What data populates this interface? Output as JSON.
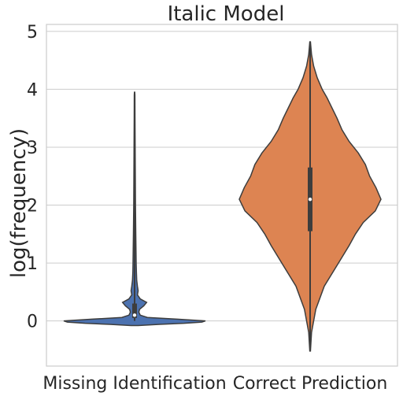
{
  "chart_data": {
    "type": "violin",
    "title": "Italic Model",
    "xlabel": "",
    "ylabel": "log(frequency)",
    "ylim": [
      -0.78,
      5.12
    ],
    "yticks": [
      "0",
      "1",
      "2",
      "3",
      "4",
      "5"
    ],
    "grid": "horizontal",
    "categories": [
      "Missing Identification",
      "Correct Prediction"
    ],
    "series": [
      {
        "color": "#4c72b0",
        "min": 0.0,
        "max": 3.95,
        "q1": 0.05,
        "median": 0.1,
        "q3": 0.3,
        "density": [
          [
            -0.08,
            0.05
          ],
          [
            -0.06,
            0.35
          ],
          [
            -0.04,
            0.7
          ],
          [
            -0.02,
            0.95
          ],
          [
            0.0,
            1.0
          ],
          [
            0.03,
            0.6
          ],
          [
            0.06,
            0.18
          ],
          [
            0.1,
            0.08
          ],
          [
            0.15,
            0.06
          ],
          [
            0.2,
            0.07
          ],
          [
            0.26,
            0.13
          ],
          [
            0.32,
            0.17
          ],
          [
            0.38,
            0.08
          ],
          [
            0.45,
            0.04
          ],
          [
            0.52,
            0.05
          ],
          [
            0.6,
            0.04
          ],
          [
            0.7,
            0.03
          ],
          [
            0.85,
            0.025
          ],
          [
            1.0,
            0.022
          ],
          [
            1.2,
            0.02
          ],
          [
            1.5,
            0.017
          ],
          [
            2.0,
            0.012
          ],
          [
            2.5,
            0.01
          ],
          [
            3.0,
            0.008
          ],
          [
            3.5,
            0.006
          ],
          [
            3.9,
            0.004
          ],
          [
            3.95,
            0.002
          ]
        ]
      },
      {
        "color": "#dd8452",
        "min": -0.52,
        "max": 4.82,
        "q1": 1.55,
        "median": 2.1,
        "q3": 2.65,
        "density": [
          [
            -0.52,
            0.005
          ],
          [
            -0.2,
            0.02
          ],
          [
            0.2,
            0.08
          ],
          [
            0.6,
            0.2
          ],
          [
            1.0,
            0.4
          ],
          [
            1.3,
            0.55
          ],
          [
            1.5,
            0.64
          ],
          [
            1.7,
            0.75
          ],
          [
            1.9,
            0.92
          ],
          [
            2.1,
            1.0
          ],
          [
            2.3,
            0.93
          ],
          [
            2.5,
            0.84
          ],
          [
            2.7,
            0.78
          ],
          [
            2.9,
            0.68
          ],
          [
            3.1,
            0.55
          ],
          [
            3.3,
            0.45
          ],
          [
            3.5,
            0.38
          ],
          [
            3.7,
            0.3
          ],
          [
            3.85,
            0.24
          ],
          [
            4.0,
            0.17
          ],
          [
            4.2,
            0.1
          ],
          [
            4.4,
            0.05
          ],
          [
            4.6,
            0.02
          ],
          [
            4.82,
            0.005
          ]
        ]
      }
    ]
  }
}
